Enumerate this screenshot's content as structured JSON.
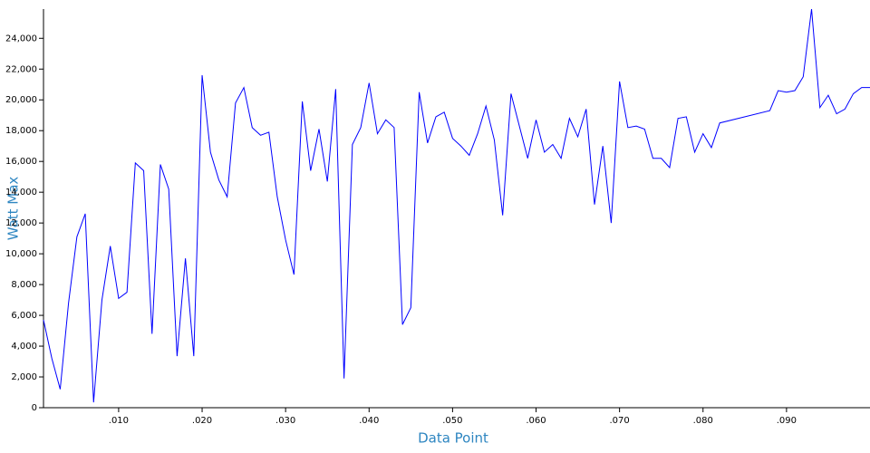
{
  "chart_data": {
    "type": "line",
    "x_label": "Data Point",
    "y_label": "Watt Max",
    "x": [
      0.001,
      0.002,
      0.003,
      0.004,
      0.005,
      0.006,
      0.007,
      0.008,
      0.009,
      0.01,
      0.011,
      0.012,
      0.013,
      0.014,
      0.015,
      0.016,
      0.017,
      0.018,
      0.019,
      0.02,
      0.021,
      0.022,
      0.023,
      0.024,
      0.025,
      0.026,
      0.027,
      0.028,
      0.029,
      0.03,
      0.031,
      0.032,
      0.033,
      0.034,
      0.035,
      0.036,
      0.037,
      0.038,
      0.039,
      0.04,
      0.041,
      0.042,
      0.043,
      0.044,
      0.045,
      0.046,
      0.047,
      0.048,
      0.049,
      0.05,
      0.051,
      0.052,
      0.053,
      0.054,
      0.055,
      0.056,
      0.057,
      0.058,
      0.059,
      0.06,
      0.061,
      0.062,
      0.063,
      0.064,
      0.065,
      0.066,
      0.067,
      0.068,
      0.069,
      0.07,
      0.071,
      0.072,
      0.073,
      0.074,
      0.075,
      0.076,
      0.077,
      0.078,
      0.079,
      0.08,
      0.081,
      0.082,
      0.088,
      0.089,
      0.09,
      0.091,
      0.092,
      0.093,
      0.094,
      0.095,
      0.096,
      0.097,
      0.098,
      0.099,
      0.1
    ],
    "values": [
      5700,
      3200,
      1200,
      6800,
      11100,
      12600,
      350,
      7000,
      10500,
      7100,
      7500,
      15900,
      15400,
      4800,
      15800,
      14200,
      3350,
      9700,
      3350,
      21600,
      16600,
      14800,
      13700,
      19800,
      20800,
      18200,
      17700,
      17900,
      13700,
      10900,
      8650,
      19900,
      15400,
      18100,
      14700,
      20700,
      1900,
      17100,
      18200,
      21100,
      17800,
      18700,
      18200,
      5400,
      6500,
      20500,
      17200,
      18900,
      19200,
      17500,
      17000,
      16400,
      17800,
      19600,
      17400,
      12500,
      20400,
      18300,
      16200,
      18700,
      16600,
      17100,
      16200,
      18800,
      17600,
      19400,
      13200,
      17000,
      12000,
      21200,
      18200,
      18300,
      18100,
      16200,
      16200,
      15600,
      18800,
      18900,
      16600,
      17800,
      16900,
      18500,
      19300,
      20600,
      20500,
      20600,
      21500,
      25900,
      19500,
      20300,
      19100,
      19400,
      20400,
      20800,
      20800
    ],
    "color": "#0000ff",
    "xlim": [
      0.001,
      0.1
    ],
    "ylim": [
      0,
      25900
    ],
    "xticks": [
      {
        "value": 0.01,
        "label": ".010"
      },
      {
        "value": 0.02,
        "label": ".020"
      },
      {
        "value": 0.03,
        "label": ".030"
      },
      {
        "value": 0.04,
        "label": ".040"
      },
      {
        "value": 0.05,
        "label": ".050"
      },
      {
        "value": 0.06,
        "label": ".060"
      },
      {
        "value": 0.07,
        "label": ".070"
      },
      {
        "value": 0.08,
        "label": ".080"
      },
      {
        "value": 0.09,
        "label": ".090"
      }
    ],
    "yticks": [
      0,
      {
        "value": 2000,
        "label": "2,000"
      },
      {
        "value": 4000,
        "label": "4,000"
      },
      {
        "value": 6000,
        "label": "6,000"
      },
      {
        "value": 8000,
        "label": "8,000"
      },
      {
        "value": 10000,
        "label": "10,000"
      },
      {
        "value": 12000,
        "label": "12,000"
      },
      {
        "value": 14000,
        "label": "14,000"
      },
      {
        "value": 16000,
        "label": "16,000"
      },
      {
        "value": 18000,
        "label": "18,000"
      },
      {
        "value": 20000,
        "label": "20,000"
      },
      {
        "value": 22000,
        "label": "22,000"
      },
      {
        "value": 24000,
        "label": "24,000"
      }
    ]
  }
}
